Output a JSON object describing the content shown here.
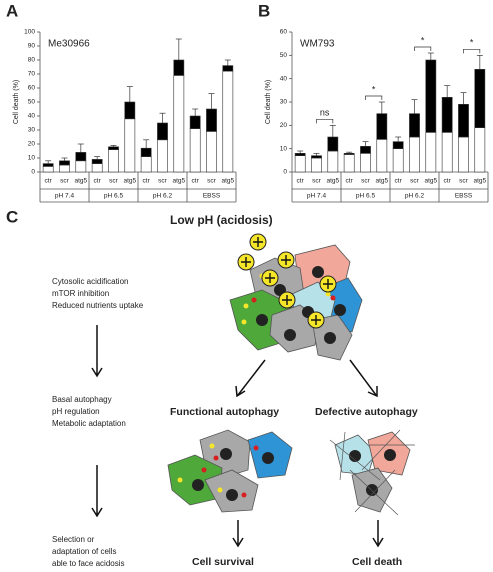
{
  "chart_data": [
    {
      "type": "bar",
      "panel": "A",
      "title": "Me30966",
      "ylabel": "Cell death (%)",
      "categories": [
        "ctr",
        "scr",
        "atg5",
        "ctr",
        "scr",
        "atg5",
        "ctr",
        "scr",
        "atg5",
        "ctr",
        "scr",
        "atg5"
      ],
      "groups": [
        "pH 7.4",
        "pH 6.5",
        "pH 6.2",
        "EBSS"
      ],
      "series": [
        {
          "color": "#ffffff",
          "values": [
            4,
            5,
            8,
            6,
            16,
            38,
            11,
            23,
            69,
            31,
            29,
            72
          ]
        },
        {
          "color": "#000000",
          "values": [
            2,
            3,
            6,
            3,
            2,
            12,
            6,
            12,
            11,
            9,
            16,
            4
          ],
          "errors": [
            2,
            2,
            6,
            2,
            1,
            11,
            6,
            7,
            15,
            5,
            11,
            4
          ]
        }
      ],
      "ylim": [
        0,
        100
      ],
      "yticks": [
        0,
        10,
        20,
        30,
        40,
        50,
        60,
        70,
        80,
        90,
        100
      ]
    },
    {
      "type": "bar",
      "panel": "B",
      "title": "WM793",
      "ylabel": "Cell death (%)",
      "categories": [
        "ctr",
        "scr",
        "atg5",
        "ctr",
        "scr",
        "atg5",
        "ctr",
        "scr",
        "atg5",
        "ctr",
        "scr",
        "atg5"
      ],
      "groups": [
        "pH 7.4",
        "pH 6.5",
        "pH 6.2",
        "EBSS"
      ],
      "series": [
        {
          "color": "#ffffff",
          "values": [
            7,
            6,
            9,
            7.5,
            8,
            14,
            10,
            15,
            17,
            17,
            15,
            19
          ]
        },
        {
          "color": "#000000",
          "values": [
            1,
            1,
            6,
            0.5,
            3,
            11,
            3,
            10,
            31,
            15,
            14,
            25
          ],
          "errors": [
            1,
            1,
            5,
            0.5,
            2,
            5,
            2,
            6,
            3,
            5,
            5,
            6
          ]
        }
      ],
      "annotations": [
        "ns",
        "*",
        "*",
        "*"
      ],
      "ylim": [
        0,
        60
      ],
      "yticks": [
        0,
        10,
        20,
        30,
        40,
        50,
        60
      ]
    }
  ],
  "diagram": {
    "panel": "C",
    "title": "Low pH (acidosis)",
    "steps": [
      [
        "Cytosolic acidification",
        "mTOR inhibition",
        "Reduced nutrients uptake"
      ],
      [
        "Basal autophagy",
        "pH regulation",
        "Metabolic adaptation"
      ],
      [
        "Selection or",
        "adaptation of cells",
        "able to face acidosis"
      ]
    ],
    "branches": [
      "Functional autophagy",
      "Defective autophagy"
    ],
    "outcomes": [
      "Cell survival",
      "Cell death"
    ]
  }
}
